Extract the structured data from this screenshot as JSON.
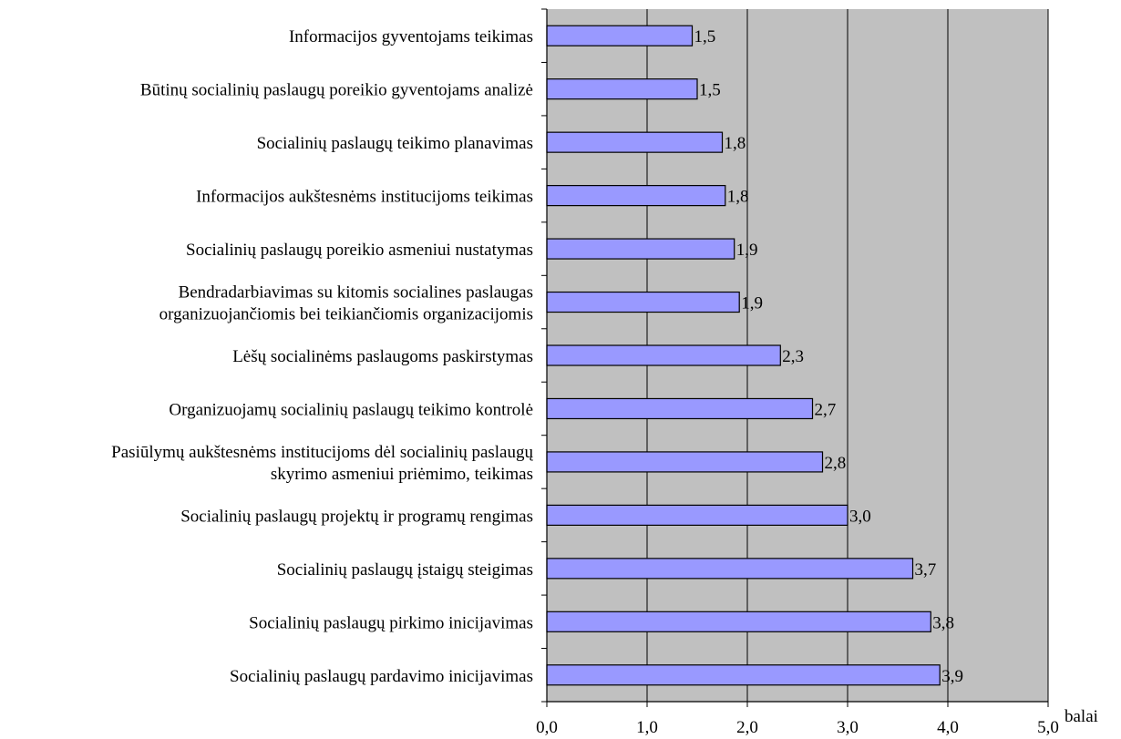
{
  "chart_data": {
    "type": "bar",
    "orientation": "horizontal",
    "categories": [
      [
        "Informacijos gyventojams teikimas"
      ],
      [
        "Būtinų socialinių paslaugų poreikio gyventojams analizė"
      ],
      [
        "Socialinių paslaugų teikimo planavimas"
      ],
      [
        "Informacijos aukštesnėms institucijoms teikimas"
      ],
      [
        "Socialinių paslaugų poreikio asmeniui nustatymas"
      ],
      [
        "Bendradarbiavimas su kitomis socialines paslaugas",
        "organizuojančiomis bei teikiančiomis organizacijomis"
      ],
      [
        "Lėšų socialinėms paslaugoms paskirstymas"
      ],
      [
        "Organizuojamų socialinių paslaugų teikimo kontrolė"
      ],
      [
        "Pasiūlymų aukštesnėms institucijoms dėl socialinių paslaugų",
        "skyrimo asmeniui priėmimo, teikimas"
      ],
      [
        "Socialinių paslaugų projektų ir programų rengimas"
      ],
      [
        "Socialinių paslaugų įstaigų steigimas"
      ],
      [
        "Socialinių paslaugų pirkimo inicijavimas"
      ],
      [
        "Socialinių paslaugų pardavimo inicijavimas"
      ]
    ],
    "values": [
      1.45,
      1.5,
      1.75,
      1.78,
      1.87,
      1.92,
      2.33,
      2.65,
      2.75,
      3.0,
      3.65,
      3.83,
      3.92
    ],
    "data_labels": [
      "1,5",
      "1,5",
      "1,8",
      "1,8",
      "1,9",
      "1,9",
      "2,3",
      "2,7",
      "2,8",
      "3,0",
      "3,7",
      "3,8",
      "3,9"
    ],
    "xlim": [
      0,
      5
    ],
    "xticks": [
      0,
      1,
      2,
      3,
      4,
      5
    ],
    "xtick_labels": [
      "0,0",
      "1,0",
      "2,0",
      "3,0",
      "4,0",
      "5,0"
    ],
    "xlabel": "balai",
    "grid": "vertical",
    "colors": {
      "bar_fill": "#9999ff",
      "bar_stroke": "#000000",
      "plot_background": "#c0c0c0",
      "gridline": "#000000"
    }
  }
}
